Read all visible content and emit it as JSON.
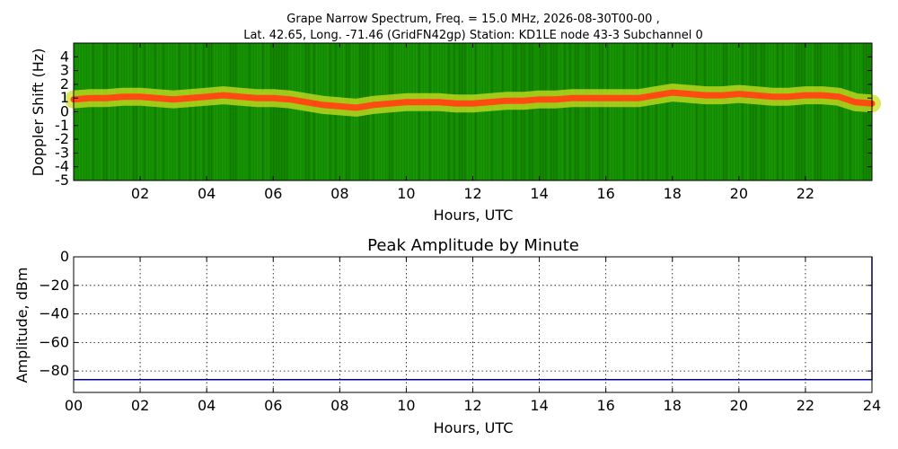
{
  "chart_data": [
    {
      "type": "heatmap",
      "title_line1": "Grape Narrow Spectrum, Freq. = 15.0 MHz, 2026-08-30T00-00 ,",
      "title_line2": "Lat.  42.65, Long. -71.46 (GridFN42gp) Station: KD1LE node 43-3 Subchannel 0",
      "xlabel": "Hours, UTC",
      "ylabel": "Doppler Shift (Hz)",
      "xlim": [
        0,
        24
      ],
      "ylim": [
        -5,
        5
      ],
      "x_ticks": [
        "02",
        "04",
        "06",
        "08",
        "10",
        "12",
        "14",
        "16",
        "18",
        "20",
        "22"
      ],
      "x_tick_values": [
        2,
        4,
        6,
        8,
        10,
        12,
        14,
        16,
        18,
        20,
        22
      ],
      "y_ticks": [
        "4",
        "3",
        "2",
        "1",
        "0",
        "-1",
        "-2",
        "-3",
        "-4",
        "-5"
      ],
      "y_tick_values": [
        4,
        3,
        2,
        1,
        0,
        -1,
        -2,
        -3,
        -4,
        -5
      ],
      "colors": {
        "background": "#138a00",
        "halo": "#cfe020",
        "peak": "#ff4a12"
      },
      "doppler_peak": {
        "x": [
          0,
          0.5,
          1,
          1.5,
          2,
          2.5,
          3,
          3.5,
          4,
          4.5,
          5,
          5.5,
          6,
          6.5,
          7,
          7.5,
          8,
          8.5,
          9,
          9.5,
          10,
          10.5,
          11,
          11.5,
          12,
          12.5,
          13,
          13.5,
          14,
          14.5,
          15,
          15.5,
          16,
          16.5,
          17,
          17.5,
          18,
          18.5,
          19,
          19.5,
          20,
          20.5,
          21,
          21.5,
          22,
          22.5,
          23,
          23.5,
          24
        ],
        "y": [
          0.9,
          1.0,
          1.0,
          1.1,
          1.1,
          1.0,
          0.9,
          1.0,
          1.1,
          1.2,
          1.1,
          1.0,
          1.0,
          0.9,
          0.7,
          0.5,
          0.4,
          0.3,
          0.5,
          0.6,
          0.7,
          0.7,
          0.7,
          0.6,
          0.6,
          0.7,
          0.8,
          0.8,
          0.9,
          0.9,
          1.0,
          1.0,
          1.0,
          1.0,
          1.0,
          1.2,
          1.4,
          1.3,
          1.2,
          1.2,
          1.3,
          1.2,
          1.1,
          1.1,
          1.2,
          1.2,
          1.1,
          0.7,
          0.6
        ]
      }
    },
    {
      "type": "line",
      "title": "Peak Amplitude by Minute",
      "xlabel": "Hours, UTC",
      "ylabel": "Amplitude, dBm",
      "xlim": [
        0,
        24
      ],
      "ylim": [
        -95,
        0
      ],
      "grid": true,
      "x_ticks": [
        "00",
        "02",
        "04",
        "06",
        "08",
        "10",
        "12",
        "14",
        "16",
        "18",
        "20",
        "22",
        "24"
      ],
      "x_tick_values": [
        0,
        2,
        4,
        6,
        8,
        10,
        12,
        14,
        16,
        18,
        20,
        22,
        24
      ],
      "y_ticks": [
        "0",
        "−20",
        "−40",
        "−60",
        "−80"
      ],
      "y_tick_values": [
        0,
        -20,
        -40,
        -60,
        -80
      ],
      "series": [
        {
          "color": "#00008b",
          "x": [
            0,
            2,
            4,
            6,
            8,
            10,
            12,
            14,
            16,
            18,
            20,
            22,
            23.95,
            24,
            24
          ],
          "y": [
            -86,
            -86,
            -86,
            -86,
            -86,
            -86,
            -86,
            -86,
            -86,
            -86,
            -86,
            -86,
            -86,
            -86,
            0
          ]
        }
      ]
    }
  ]
}
